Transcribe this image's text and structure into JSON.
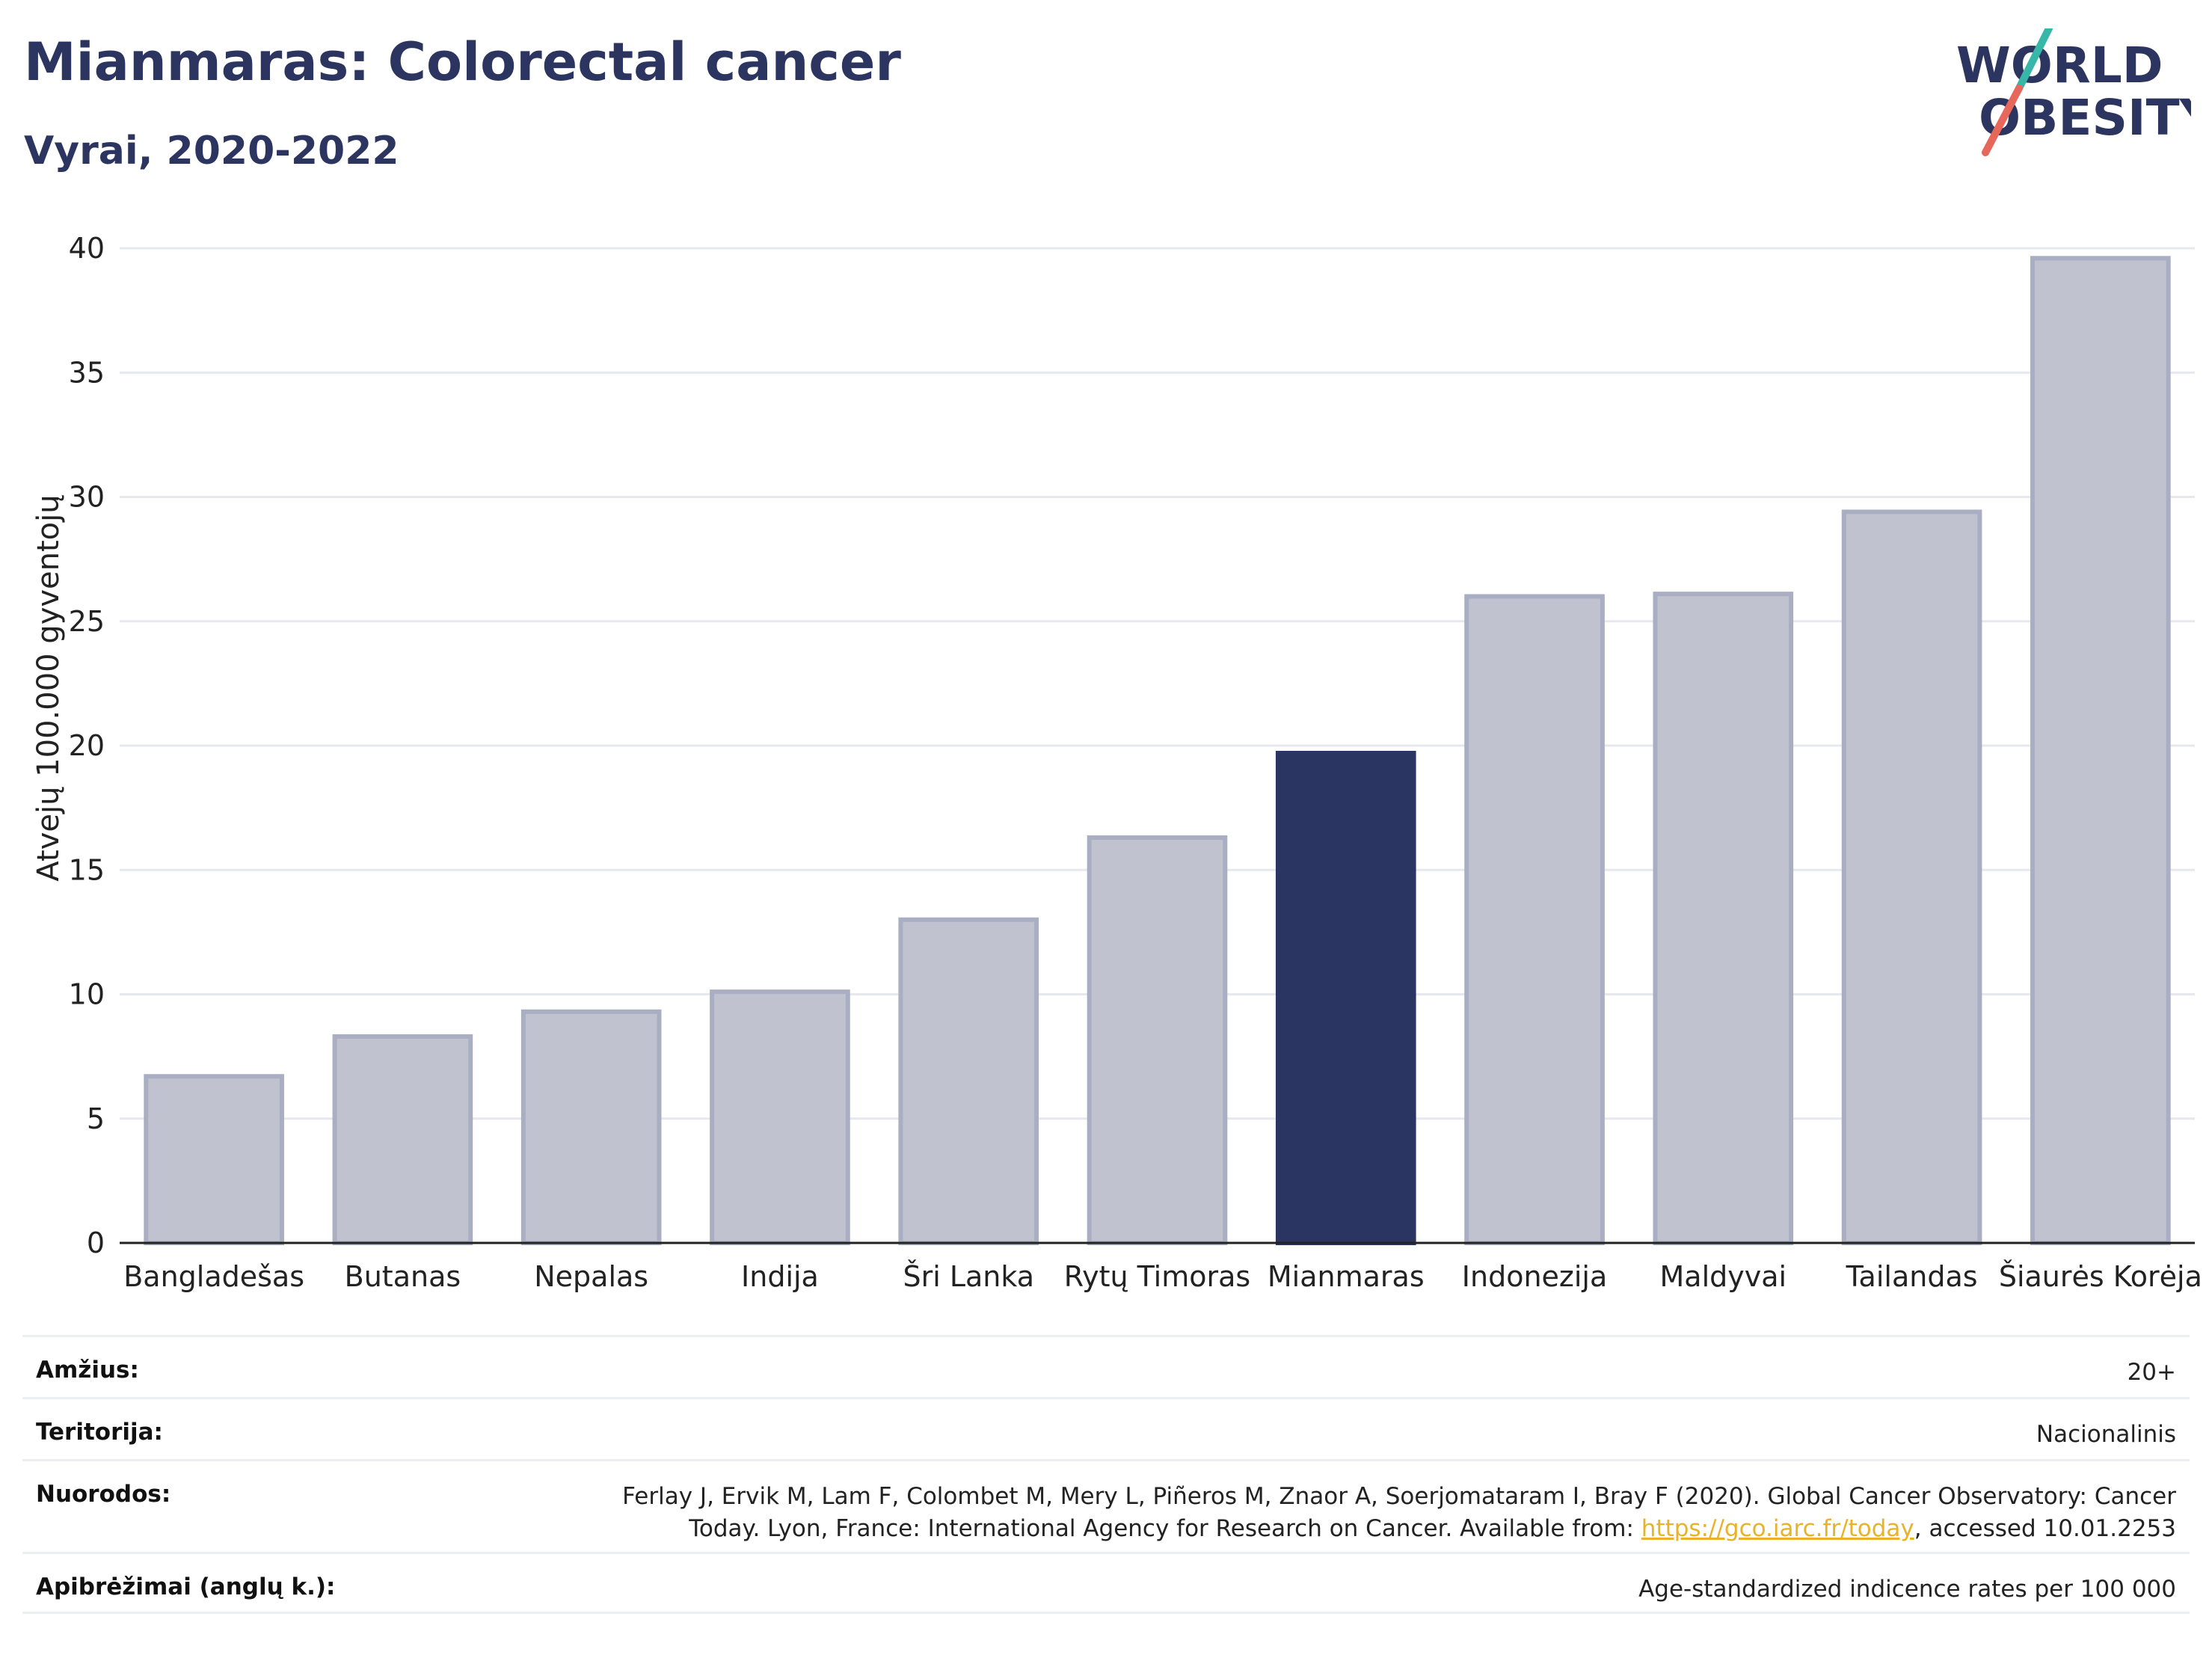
{
  "header": {
    "title": "Mianmaras: Colorectal cancer",
    "subtitle": "Vyrai, 2020-2022"
  },
  "logo": {
    "line1": "WORLD",
    "line2": "OBESITY",
    "name": "world-obesity-logo"
  },
  "chart_data": {
    "type": "bar",
    "categories": [
      "Bangladešas",
      "Butanas",
      "Nepalas",
      "Indija",
      "Šri Lanka",
      "Rytų Timoras",
      "Mianmaras",
      "Indonezija",
      "Maldyvai",
      "Tailandas",
      "Šiaurės Korėja"
    ],
    "values": [
      6.7,
      8.3,
      9.3,
      10.1,
      13.0,
      16.3,
      19.7,
      26.0,
      26.1,
      29.4,
      39.6
    ],
    "highlight": "Mianmaras",
    "ylabel": "Atvejų 100.000 gyventojų",
    "xlabel": "",
    "ylim": [
      0,
      40
    ],
    "yticks": [
      0,
      5,
      10,
      15,
      20,
      25,
      30,
      35,
      40
    ],
    "grid": true,
    "colors": {
      "bar": "#c0c3cf",
      "bar_border": "#a9aec2",
      "highlight": "#2b3561"
    }
  },
  "info": {
    "age_label": "Amžius:",
    "age_value": "20+",
    "territory_label": "Teritorija:",
    "territory_value": "Nacionalinis",
    "refs_label": "Nuorodos:",
    "refs_line1": "Ferlay J, Ervik M, Lam F, Colombet M, Mery L, Piñeros M, Znaor A, Soerjomataram I, Bray F (2020). Global Cancer Observatory: Cancer",
    "refs_line2_pre": "Today. Lyon, France: International Agency for Research on Cancer. Available from: ",
    "refs_link": "https://gco.iarc.fr/today",
    "refs_line2_post": ", accessed 10.01.2253",
    "defs_label": "Apibrėžimai (anglų k.):",
    "defs_value": "Age-standardized indicence rates per 100 000"
  }
}
